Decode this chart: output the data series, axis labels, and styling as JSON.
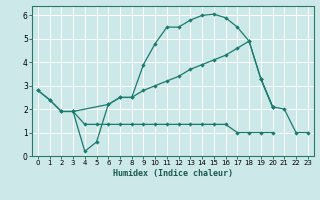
{
  "xlabel": "Humidex (Indice chaleur)",
  "bg_color": "#cce8e8",
  "grid_color": "#ffffff",
  "line_color": "#1a7a6e",
  "xlim": [
    -0.5,
    23.5
  ],
  "ylim": [
    0,
    6.4
  ],
  "yticks": [
    0,
    1,
    2,
    3,
    4,
    5,
    6
  ],
  "xticks": [
    0,
    1,
    2,
    3,
    4,
    5,
    6,
    7,
    8,
    9,
    10,
    11,
    12,
    13,
    14,
    15,
    16,
    17,
    18,
    19,
    20,
    21,
    22,
    23
  ],
  "line1_x": [
    0,
    1,
    2,
    3,
    4,
    5,
    6,
    7,
    8,
    9,
    10,
    11,
    12,
    13,
    14,
    15,
    16,
    17,
    18,
    19,
    20
  ],
  "line1_y": [
    2.8,
    2.4,
    1.9,
    1.9,
    0.2,
    0.6,
    2.2,
    2.5,
    2.5,
    3.9,
    4.8,
    5.5,
    5.5,
    5.8,
    6.0,
    6.05,
    5.9,
    5.5,
    4.9,
    3.3,
    2.1
  ],
  "line2_x": [
    0,
    1,
    2,
    3,
    6,
    7,
    8,
    9,
    10,
    11,
    12,
    13,
    14,
    15,
    16,
    17,
    18,
    19,
    20
  ],
  "line2_y": [
    2.8,
    2.4,
    1.9,
    1.9,
    2.2,
    2.5,
    2.5,
    2.8,
    3.0,
    3.2,
    3.4,
    3.7,
    3.9,
    4.1,
    4.3,
    4.6,
    4.9,
    3.3,
    2.1
  ],
  "line3_x": [
    3,
    4,
    5,
    6,
    7,
    8,
    9,
    10,
    11,
    12,
    13,
    14,
    15,
    16,
    17,
    18,
    19,
    20
  ],
  "line3_y": [
    1.9,
    1.35,
    1.35,
    1.35,
    1.35,
    1.35,
    1.35,
    1.35,
    1.35,
    1.35,
    1.35,
    1.35,
    1.35,
    1.35,
    1.0,
    1.0,
    1.0,
    1.0
  ],
  "line4_x": [
    19,
    20,
    21,
    22,
    23
  ],
  "line4_y": [
    3.3,
    2.1,
    2.0,
    1.0,
    1.0
  ]
}
